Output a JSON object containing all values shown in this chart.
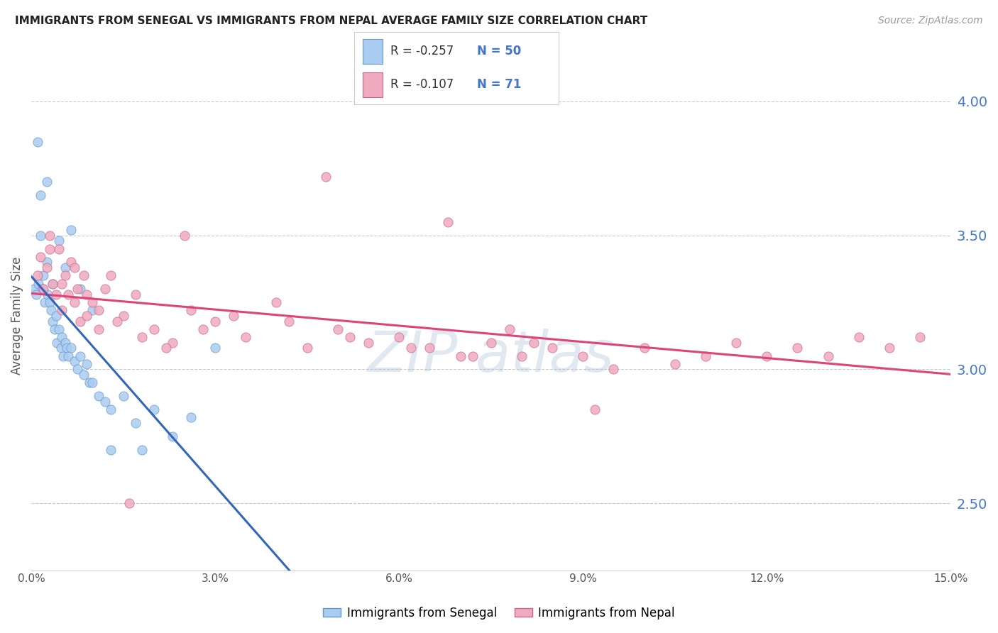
{
  "title": "IMMIGRANTS FROM SENEGAL VS IMMIGRANTS FROM NEPAL AVERAGE FAMILY SIZE CORRELATION CHART",
  "source": "Source: ZipAtlas.com",
  "ylabel": "Average Family Size",
  "right_yticks": [
    2.5,
    3.0,
    3.5,
    4.0
  ],
  "xmin": 0.0,
  "xmax": 15.0,
  "ymin": 2.25,
  "ymax": 4.15,
  "legend_r1": "-0.257",
  "legend_n1": "50",
  "legend_r2": "-0.107",
  "legend_n2": "71",
  "color_senegal_fill": "#aaccf0",
  "color_senegal_edge": "#6699cc",
  "color_nepal_fill": "#f0aac0",
  "color_nepal_edge": "#cc6688",
  "color_line_senegal": "#3366bb",
  "color_line_nepal": "#dd4477",
  "color_dashed": "#99bbdd",
  "color_axis_right": "#4477cc",
  "color_title": "#222222",
  "senegal_x": [
    0.05,
    0.08,
    0.1,
    0.12,
    0.15,
    0.18,
    0.2,
    0.22,
    0.25,
    0.27,
    0.3,
    0.32,
    0.35,
    0.38,
    0.4,
    0.42,
    0.45,
    0.48,
    0.5,
    0.52,
    0.55,
    0.58,
    0.6,
    0.65,
    0.7,
    0.75,
    0.8,
    0.85,
    0.9,
    0.95,
    1.0,
    1.1,
    1.2,
    1.3,
    1.5,
    1.7,
    2.0,
    2.3,
    2.6,
    3.0,
    0.15,
    0.25,
    0.35,
    0.45,
    0.55,
    0.65,
    0.8,
    1.0,
    1.3,
    1.8
  ],
  "senegal_y": [
    3.3,
    3.28,
    3.85,
    3.32,
    3.65,
    3.3,
    3.35,
    3.25,
    3.7,
    3.28,
    3.25,
    3.22,
    3.18,
    3.15,
    3.2,
    3.1,
    3.15,
    3.08,
    3.12,
    3.05,
    3.1,
    3.08,
    3.05,
    3.08,
    3.03,
    3.0,
    3.05,
    2.98,
    3.02,
    2.95,
    2.95,
    2.9,
    2.88,
    2.85,
    2.9,
    2.8,
    2.85,
    2.75,
    2.82,
    3.08,
    3.5,
    3.4,
    3.32,
    3.48,
    3.38,
    3.52,
    3.3,
    3.22,
    2.7,
    2.7
  ],
  "nepal_x": [
    0.1,
    0.15,
    0.2,
    0.25,
    0.3,
    0.35,
    0.4,
    0.45,
    0.5,
    0.55,
    0.6,
    0.65,
    0.7,
    0.75,
    0.8,
    0.85,
    0.9,
    1.0,
    1.1,
    1.2,
    1.3,
    1.5,
    1.7,
    2.0,
    2.3,
    2.6,
    3.0,
    3.5,
    4.0,
    4.5,
    5.0,
    5.5,
    6.0,
    6.5,
    7.0,
    7.5,
    8.0,
    8.5,
    9.0,
    9.5,
    10.0,
    10.5,
    11.0,
    11.5,
    12.0,
    12.5,
    13.0,
    13.5,
    14.0,
    14.5,
    0.3,
    0.5,
    0.7,
    0.9,
    1.1,
    1.4,
    1.8,
    2.2,
    2.8,
    3.3,
    4.2,
    5.2,
    6.2,
    7.2,
    8.2,
    9.2,
    2.5,
    4.8,
    6.8,
    1.6,
    7.8
  ],
  "nepal_y": [
    3.35,
    3.42,
    3.3,
    3.38,
    3.5,
    3.32,
    3.28,
    3.45,
    3.22,
    3.35,
    3.28,
    3.4,
    3.25,
    3.3,
    3.18,
    3.35,
    3.2,
    3.25,
    3.15,
    3.3,
    3.35,
    3.2,
    3.28,
    3.15,
    3.1,
    3.22,
    3.18,
    3.12,
    3.25,
    3.08,
    3.15,
    3.1,
    3.12,
    3.08,
    3.05,
    3.1,
    3.05,
    3.08,
    3.05,
    3.0,
    3.08,
    3.02,
    3.05,
    3.1,
    3.05,
    3.08,
    3.05,
    3.12,
    3.08,
    3.12,
    3.45,
    3.32,
    3.38,
    3.28,
    3.22,
    3.18,
    3.12,
    3.08,
    3.15,
    3.2,
    3.18,
    3.12,
    3.08,
    3.05,
    3.1,
    2.85,
    3.5,
    3.72,
    3.55,
    2.5,
    3.15
  ]
}
